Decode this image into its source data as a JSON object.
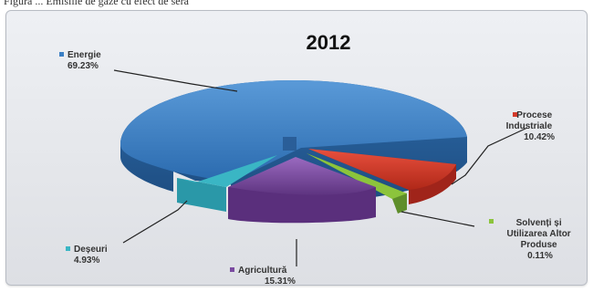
{
  "caption": "Figura ... Emisiile de gaze cu efect de seră",
  "chart_data": {
    "type": "pie",
    "title": "2012",
    "slices": [
      {
        "name": "Energie",
        "value": 69.23,
        "value_label": "69.23%",
        "color": "#3a7fc4"
      },
      {
        "name": "Procese Industriale",
        "value": 10.42,
        "value_label": "10.42%",
        "color": "#d43a2a"
      },
      {
        "name": "Solvenți și Utilizarea Altor Produse",
        "value": 0.11,
        "value_label": "0.11%",
        "color": "#8cc43c"
      },
      {
        "name": "Agricultură",
        "value": 15.31,
        "value_label": "15.31%",
        "color": "#7a4aa0"
      },
      {
        "name": "Deșeuri",
        "value": 4.93,
        "value_label": "4.93%",
        "color": "#3ab6c4"
      }
    ],
    "legend_lines": {
      "energie": [
        "Energie",
        "69.23%"
      ],
      "procese": [
        "Procese",
        "Industriale",
        "10.42%"
      ],
      "solventi": [
        "Solvenți și",
        "Utilizarea Altor",
        "Produse",
        "0.11%"
      ],
      "agricultura": [
        "Agricultură",
        "15.31%"
      ],
      "deseuri": [
        "Deșeuri",
        "4.93%"
      ]
    }
  }
}
